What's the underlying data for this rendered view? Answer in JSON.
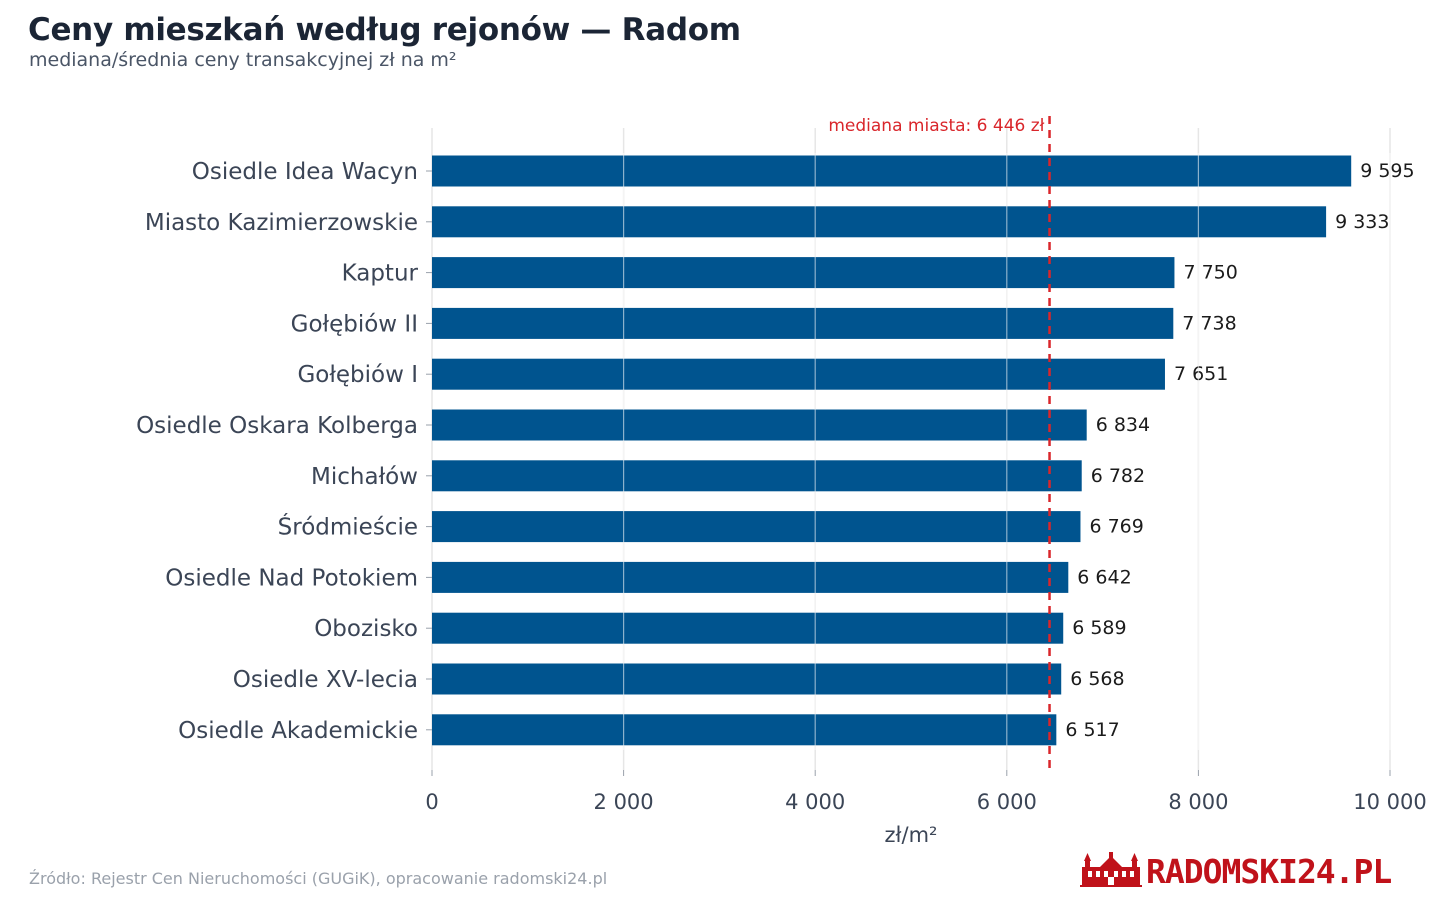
{
  "title": "Ceny mieszkań według rejonów — Radom",
  "subtitle": "mediana/średnia ceny transakcyjnej zł na m²",
  "source": "Źródło: Rejestr Cen Nieruchomości (GUGiK), opracowanie radomski24.pl",
  "logo_text": "RADOMSKI24.PL",
  "colors": {
    "bar": "#00548f",
    "median_line": "#d9262b",
    "grid": "#e6e6e6",
    "label": "#3b4556"
  },
  "chart_data": {
    "type": "bar",
    "orientation": "horizontal",
    "title": "Ceny mieszkań według rejonów — Radom",
    "subtitle": "mediana/średnia ceny transakcyjnej zł na m²",
    "xlabel": "zł/m²",
    "ylabel": "",
    "xlim": [
      0,
      10000
    ],
    "x_ticks": [
      0,
      2000,
      4000,
      6000,
      8000,
      10000
    ],
    "x_tick_labels": [
      "0",
      "2 000",
      "4 000",
      "6 000",
      "8 000",
      "10 000"
    ],
    "grid": "vertical",
    "categories": [
      "Osiedle Idea Wacyn",
      "Miasto Kazimierzowskie",
      "Kaptur",
      "Gołębiów II",
      "Gołębiów I",
      "Osiedle Oskara Kolberga",
      "Michałów",
      "Śródmieście",
      "Osiedle Nad Potokiem",
      "Obozisko",
      "Osiedle XV-lecia",
      "Osiedle Akademickie"
    ],
    "values": [
      9595,
      9333,
      7750,
      7738,
      7651,
      6834,
      6782,
      6769,
      6642,
      6589,
      6568,
      6517
    ],
    "value_labels": [
      "9 595",
      "9 333",
      "7 750",
      "7 738",
      "7 651",
      "6 834",
      "6 782",
      "6 769",
      "6 642",
      "6 589",
      "6 568",
      "6 517"
    ],
    "reference_line": {
      "value": 6446,
      "label": "mediana miasta: 6 446 zł"
    }
  }
}
